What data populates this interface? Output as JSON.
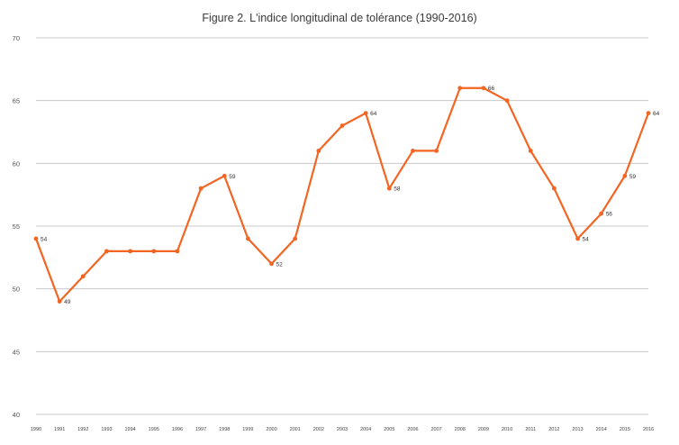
{
  "chart_data": {
    "type": "line",
    "title": "Figure 2. L'indice longitudinal de tolérance (1990-2016)",
    "xlabel": "",
    "ylabel": "",
    "ylim": [
      40,
      70
    ],
    "yticks": [
      40,
      45,
      50,
      55,
      60,
      65,
      70
    ],
    "grid": true,
    "line_color": "#f26522",
    "grid_color": "#c8c8c8",
    "categories": [
      "1990",
      "1991",
      "1992",
      "1993",
      "1994",
      "1995",
      "1996",
      "1997",
      "1998",
      "1999",
      "2000",
      "2001",
      "2002",
      "2003",
      "2004",
      "2005",
      "2006",
      "2007",
      "2008",
      "2009",
      "2010",
      "2011",
      "2012",
      "2013",
      "2014",
      "2015",
      "2016"
    ],
    "series": [
      {
        "values": [
          54,
          49,
          51,
          53,
          53,
          53,
          53,
          58,
          59,
          54,
          52,
          54,
          61,
          63,
          64,
          58,
          61,
          61,
          66,
          66,
          65,
          61,
          58,
          54,
          56,
          59,
          64
        ]
      }
    ],
    "data_labels": [
      {
        "category": "1990",
        "text": "54"
      },
      {
        "category": "1991",
        "text": "49"
      },
      {
        "category": "1998",
        "text": "59"
      },
      {
        "category": "2000",
        "text": "52"
      },
      {
        "category": "2004",
        "text": "64"
      },
      {
        "category": "2005",
        "text": "58"
      },
      {
        "category": "2009",
        "text": "66"
      },
      {
        "category": "2013",
        "text": "54"
      },
      {
        "category": "2014",
        "text": "56"
      },
      {
        "category": "2015",
        "text": "59"
      },
      {
        "category": "2016",
        "text": "64"
      }
    ]
  }
}
